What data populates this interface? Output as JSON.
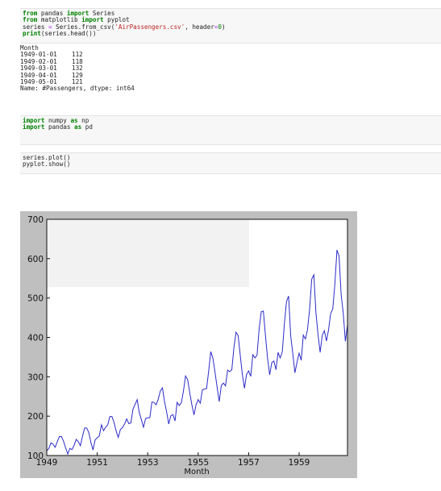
{
  "cells": [
    {
      "lines": [
        [
          {
            "t": "from",
            "c": "kw"
          },
          {
            "t": " pandas "
          },
          {
            "t": "import",
            "c": "kw"
          },
          {
            "t": " Series"
          }
        ],
        [
          {
            "t": "from",
            "c": "kw"
          },
          {
            "t": " matplotlib "
          },
          {
            "t": "import",
            "c": "kw"
          },
          {
            "t": " pyplot"
          }
        ],
        [
          {
            "t": "series "
          },
          {
            "t": "=",
            "c": "op"
          },
          {
            "t": " Series.from_csv("
          },
          {
            "t": "'AirPassengers.csv'",
            "c": "str"
          },
          {
            "t": ", header"
          },
          {
            "t": "=",
            "c": "op"
          },
          {
            "t": "0",
            "c": "num"
          },
          {
            "t": ")"
          }
        ],
        [
          {
            "t": "print",
            "c": "kw"
          },
          {
            "t": "(series.head())"
          }
        ]
      ]
    },
    {
      "lines": [
        [
          {
            "t": "import",
            "c": "kw"
          },
          {
            "t": " numpy "
          },
          {
            "t": "as",
            "c": "kw"
          },
          {
            "t": " np"
          }
        ],
        [
          {
            "t": "import",
            "c": "kw"
          },
          {
            "t": " pandas "
          },
          {
            "t": "as",
            "c": "kw"
          },
          {
            "t": " pd"
          }
        ]
      ]
    },
    {
      "lines": [
        [
          {
            "t": "series.plot()"
          }
        ],
        [
          {
            "t": "pyplot.show()"
          }
        ]
      ]
    }
  ],
  "output": {
    "header": "Month",
    "rows": [
      {
        "date": "1949-01-01",
        "value": "112"
      },
      {
        "date": "1949-02-01",
        "value": "118"
      },
      {
        "date": "1949-03-01",
        "value": "132"
      },
      {
        "date": "1949-04-01",
        "value": "129"
      },
      {
        "date": "1949-05-01",
        "value": "121"
      }
    ],
    "footer": "Name: #Passengers, dtype: int64"
  },
  "chart_data": {
    "type": "line",
    "xlabel": "Month",
    "ylabel": "",
    "title": "",
    "xlim": [
      "1949-01",
      "1960-12"
    ],
    "ylim": [
      100,
      700
    ],
    "xticks": [
      "1949",
      "1951",
      "1953",
      "1955",
      "1957",
      "1959"
    ],
    "yticks": [
      "100",
      "200",
      "300",
      "400",
      "500",
      "600",
      "700"
    ],
    "grid": false,
    "line_color": "#2b2bc8",
    "series": [
      {
        "x_start": "1949-01",
        "frequency": "monthly",
        "values": [
          112,
          118,
          132,
          129,
          121,
          135,
          148,
          148,
          136,
          119,
          104,
          118,
          115,
          126,
          141,
          135,
          125,
          149,
          170,
          170,
          158,
          133,
          114,
          140,
          145,
          150,
          178,
          163,
          172,
          178,
          199,
          199,
          184,
          162,
          146,
          166,
          171,
          180,
          193,
          181,
          183,
          218,
          230,
          242,
          209,
          191,
          172,
          194,
          196,
          196,
          236,
          235,
          229,
          243,
          264,
          272,
          237,
          211,
          180,
          201,
          204,
          188,
          235,
          227,
          234,
          264,
          302,
          293,
          259,
          229,
          203,
          229,
          242,
          233,
          267,
          269,
          270,
          315,
          364,
          347,
          312,
          274,
          237,
          278,
          284,
          277,
          317,
          313,
          318,
          374,
          413,
          405,
          355,
          306,
          271,
          306,
          315,
          301,
          356,
          348,
          355,
          422,
          465,
          467,
          404,
          347,
          305,
          336,
          340,
          318,
          362,
          348,
          363,
          435,
          491,
          505,
          404,
          359,
          310,
          337,
          360,
          342,
          406,
          396,
          420,
          472,
          548,
          559,
          463,
          407,
          362,
          405,
          417,
          391,
          419,
          461,
          472,
          535,
          622,
          606,
          508,
          461,
          390,
          432
        ]
      }
    ]
  }
}
